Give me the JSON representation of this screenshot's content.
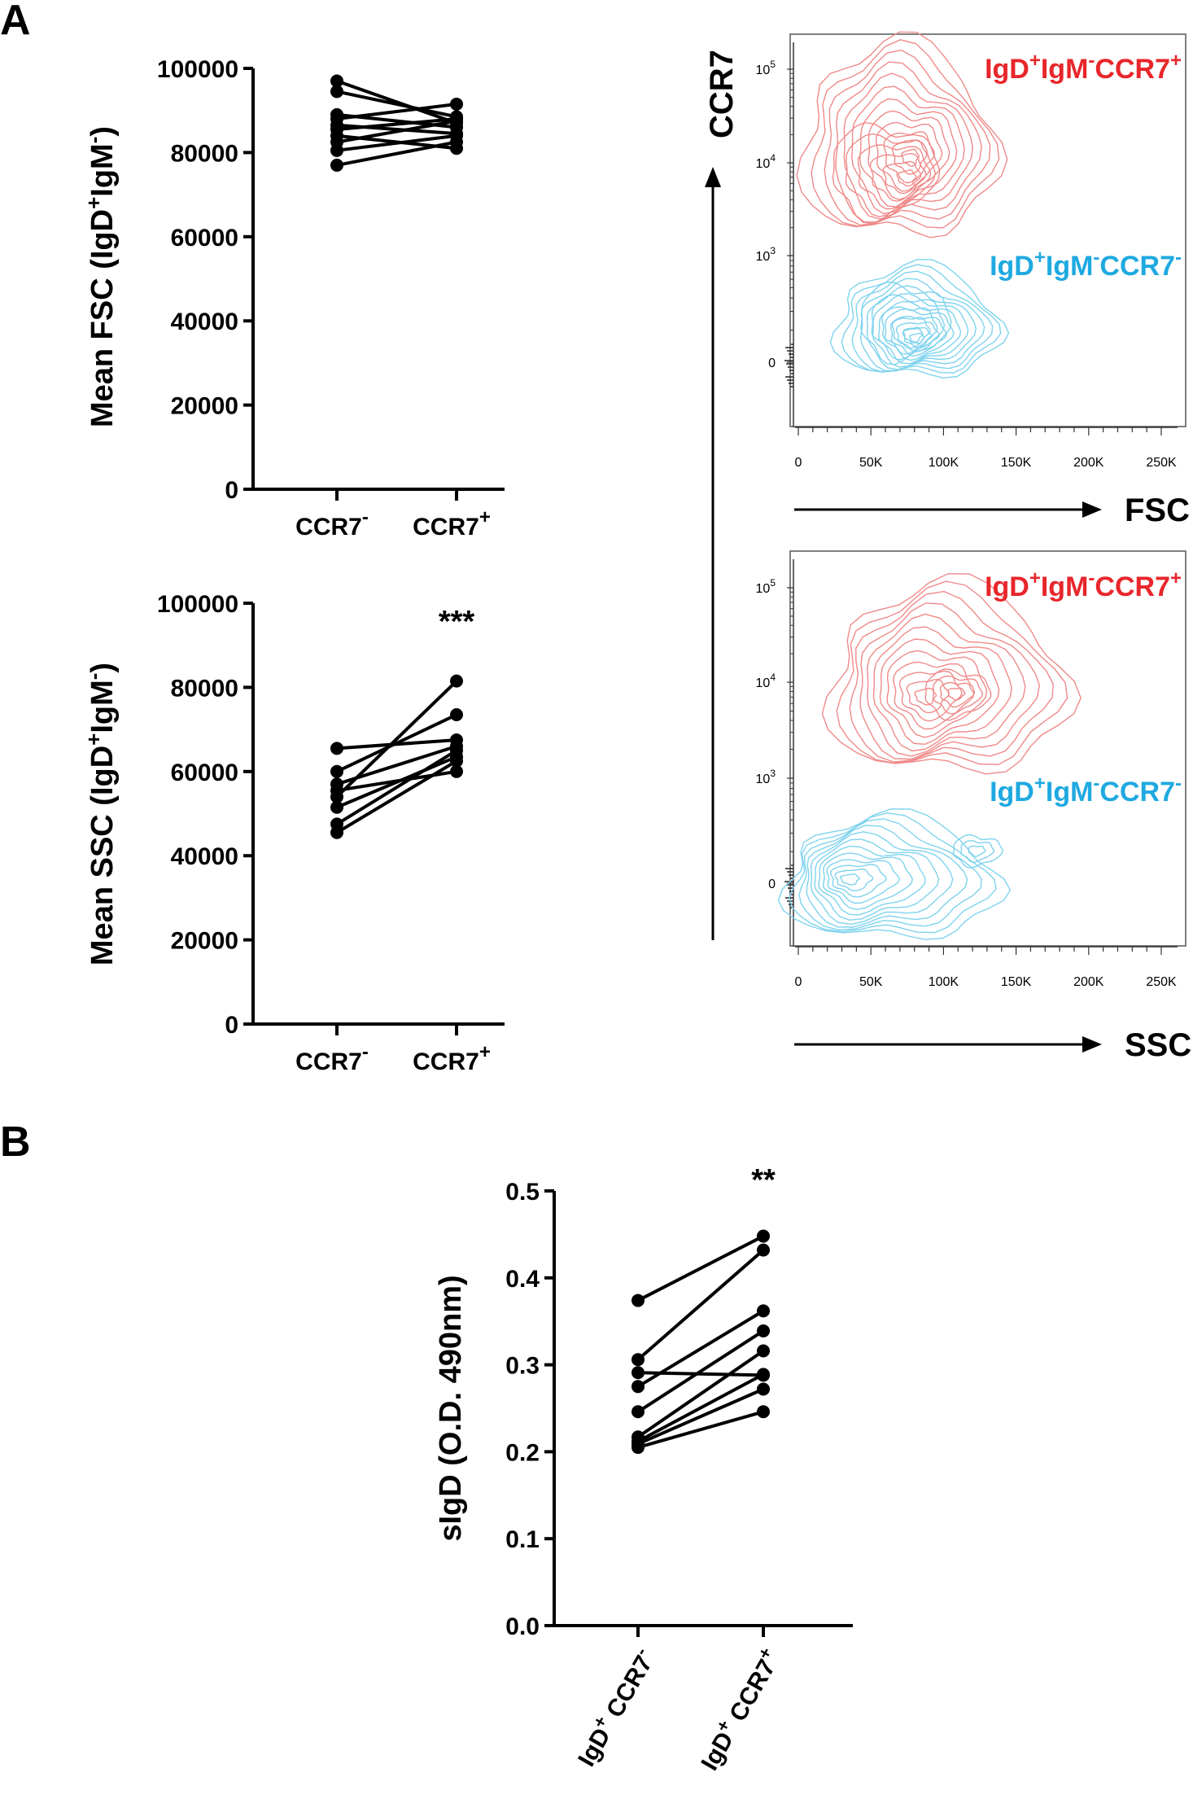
{
  "panels": {
    "a": "A",
    "b": "B"
  },
  "chart_data": [
    {
      "id": "fsc",
      "type": "line",
      "title": "",
      "ylabel_main": "Mean FSC (IgD",
      "ylabel_sup1": "+",
      "ylabel_mid": "IgM",
      "ylabel_sup2": "-",
      "ylabel_end": ")",
      "ylim": [
        0,
        100000
      ],
      "yticks": [
        "0",
        "20000",
        "40000",
        "60000",
        "80000",
        "100000"
      ],
      "categories": [
        {
          "base": "CCR7",
          "sup": "-"
        },
        {
          "base": "CCR7",
          "sup": "+"
        }
      ],
      "significance": "",
      "pairs": [
        [
          97000,
          87000
        ],
        [
          94500,
          88500
        ],
        [
          89000,
          86000
        ],
        [
          88000,
          91500
        ],
        [
          86500,
          84500
        ],
        [
          85500,
          88000
        ],
        [
          84000,
          81000
        ],
        [
          82500,
          87500
        ],
        [
          80500,
          84000
        ],
        [
          77000,
          82500
        ]
      ]
    },
    {
      "id": "ssc",
      "type": "line",
      "title": "",
      "ylabel_main": "Mean SSC (IgD",
      "ylabel_sup1": "+",
      "ylabel_mid": "IgM",
      "ylabel_sup2": "-",
      "ylabel_end": ")",
      "ylim": [
        0,
        100000
      ],
      "yticks": [
        "0",
        "20000",
        "40000",
        "60000",
        "80000",
        "100000"
      ],
      "categories": [
        {
          "base": "CCR7",
          "sup": "-"
        },
        {
          "base": "CCR7",
          "sup": "+"
        }
      ],
      "significance": "***",
      "pairs": [
        [
          65500,
          67500
        ],
        [
          60000,
          73500
        ],
        [
          57000,
          66000
        ],
        [
          55500,
          60000
        ],
        [
          54000,
          81500
        ],
        [
          51500,
          63500
        ],
        [
          47500,
          65000
        ],
        [
          45500,
          62500
        ]
      ]
    },
    {
      "id": "sigd",
      "type": "line",
      "title": "",
      "ylabel_main": "sIgD (O.D. 490nm)",
      "ylim": [
        0,
        0.5
      ],
      "yticks": [
        "0.0",
        "0.1",
        "0.2",
        "0.3",
        "0.4",
        "0.5"
      ],
      "categories": [
        {
          "base": "IgD",
          "sup": "+",
          "rest": "CCR7",
          "sup2": "-"
        },
        {
          "base": "IgD",
          "sup": "+",
          "rest": "CCR7",
          "sup2": "+"
        }
      ],
      "significance": "**",
      "pairs": [
        [
          0.374,
          0.448
        ],
        [
          0.306,
          0.432
        ],
        [
          0.291,
          0.288
        ],
        [
          0.275,
          0.362
        ],
        [
          0.246,
          0.339
        ],
        [
          0.217,
          0.316
        ],
        [
          0.212,
          0.289
        ],
        [
          0.209,
          0.272
        ],
        [
          0.205,
          0.246
        ]
      ]
    },
    {
      "id": "facs-fsc",
      "type": "scatter",
      "subtype": "contour",
      "xlabel": "FSC",
      "ylabel": "CCR7",
      "xticks": [
        "0",
        "50K",
        "100K",
        "150K",
        "200K",
        "250K"
      ],
      "yticks": [
        {
          "base": "10",
          "exp": "5"
        },
        {
          "base": "10",
          "exp": "4"
        },
        {
          "base": "10",
          "exp": "3"
        },
        {
          "base": "0",
          "exp": ""
        }
      ],
      "gates": [
        {
          "parts": [
            "IgD",
            "+",
            "IgM",
            "-",
            "CCR7",
            "+"
          ],
          "color": "#e8262b"
        },
        {
          "parts": [
            "IgD",
            "+",
            "IgM",
            "-",
            "CCR7",
            "-"
          ],
          "color": "#1fa9e0"
        }
      ]
    },
    {
      "id": "facs-ssc",
      "type": "scatter",
      "subtype": "contour",
      "xlabel": "SSC",
      "ylabel": "",
      "xticks": [
        "0",
        "50K",
        "100K",
        "150K",
        "200K",
        "250K"
      ],
      "yticks": [
        {
          "base": "10",
          "exp": "5"
        },
        {
          "base": "10",
          "exp": "4"
        },
        {
          "base": "10",
          "exp": "3"
        },
        {
          "base": "0",
          "exp": ""
        }
      ],
      "gates": [
        {
          "parts": [
            "IgD",
            "+",
            "IgM",
            "-",
            "CCR7",
            "+"
          ],
          "color": "#e8262b"
        },
        {
          "parts": [
            "IgD",
            "+",
            "IgM",
            "-",
            "CCR7",
            "-"
          ],
          "color": "#1fa9e0"
        }
      ]
    }
  ],
  "colors": {
    "red": "#e8262b",
    "red_contour": "#f08a8a",
    "cyan": "#1fa9e0",
    "cyan_contour": "#7fd3ee"
  }
}
